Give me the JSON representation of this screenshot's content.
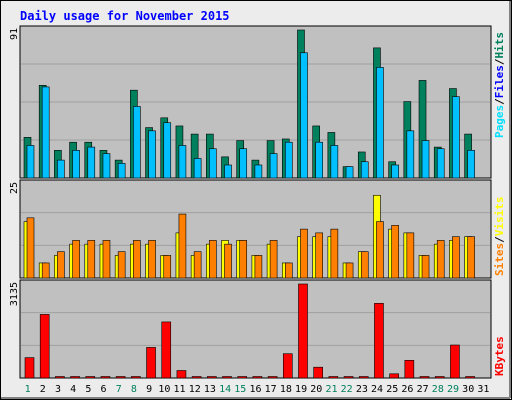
{
  "title": "Daily usage for November 2015",
  "colors": {
    "hits": "#00805c",
    "files": "#00c0ff",
    "pages": "#00e0ff",
    "sites": "#ff8000",
    "visits": "#ffff00",
    "kbytes": "#ff0000",
    "background": "#c0c0c0",
    "title": "#0000ff",
    "weekend_day": "#00805c",
    "weekday_day": "#000000"
  },
  "chart_data": [
    {
      "type": "bar",
      "name": "hits-files-pages",
      "y_max_label": "91",
      "legend": [
        "Pages",
        "Files",
        "Hits"
      ],
      "categories": [
        "1",
        "2",
        "3",
        "4",
        "5",
        "6",
        "7",
        "8",
        "9",
        "10",
        "11",
        "12",
        "13",
        "14",
        "15",
        "16",
        "17",
        "18",
        "19",
        "20",
        "21",
        "22",
        "23",
        "24",
        "25",
        "26",
        "27",
        "28",
        "29",
        "30",
        "31"
      ],
      "ylim": [
        0,
        91
      ],
      "series": [
        {
          "name": "Hits",
          "values": [
            25,
            57,
            17,
            22,
            22,
            17,
            11,
            54,
            31,
            37,
            32,
            27,
            27,
            13,
            23,
            11,
            23,
            24,
            91,
            32,
            28,
            7,
            16,
            80,
            10,
            47,
            60,
            19,
            55,
            27,
            0
          ]
        },
        {
          "name": "Files",
          "values": [
            20,
            56,
            11,
            17,
            19,
            15,
            9,
            44,
            29,
            34,
            20,
            12,
            18,
            8,
            18,
            8,
            15,
            22,
            77,
            22,
            20,
            7,
            10,
            68,
            8,
            29,
            23,
            18,
            50,
            17,
            0
          ]
        },
        {
          "name": "Pages",
          "values": [
            0,
            0,
            0,
            0,
            0,
            0,
            0,
            0,
            0,
            0,
            0,
            0,
            0,
            0,
            0,
            0,
            0,
            0,
            0,
            0,
            0,
            0,
            0,
            0,
            0,
            0,
            0,
            0,
            0,
            0,
            0
          ]
        }
      ]
    },
    {
      "type": "bar",
      "name": "visits-sites",
      "y_max_label": "25",
      "legend": [
        "Sites",
        "Visits"
      ],
      "categories": [
        "1",
        "2",
        "3",
        "4",
        "5",
        "6",
        "7",
        "8",
        "9",
        "10",
        "11",
        "12",
        "13",
        "14",
        "15",
        "16",
        "17",
        "18",
        "19",
        "20",
        "21",
        "22",
        "23",
        "24",
        "25",
        "26",
        "27",
        "28",
        "29",
        "30",
        "31"
      ],
      "ylim": [
        0,
        25
      ],
      "series": [
        {
          "name": "Visits",
          "values": [
            15,
            4,
            6,
            9,
            9,
            9,
            6,
            9,
            9,
            6,
            12,
            6,
            9,
            10,
            10,
            6,
            9,
            4,
            11,
            11,
            11,
            4,
            7,
            22,
            13,
            12,
            6,
            9,
            10,
            11,
            0
          ]
        },
        {
          "name": "Sites",
          "values": [
            16,
            4,
            7,
            10,
            10,
            10,
            7,
            10,
            10,
            6,
            17,
            7,
            10,
            9,
            10,
            6,
            10,
            4,
            13,
            12,
            13,
            4,
            7,
            15,
            14,
            12,
            6,
            10,
            11,
            11,
            0
          ]
        }
      ]
    },
    {
      "type": "bar",
      "name": "kbytes",
      "y_max_label": "3135",
      "legend": [
        "KBytes"
      ],
      "categories": [
        "1",
        "2",
        "3",
        "4",
        "5",
        "6",
        "7",
        "8",
        "9",
        "10",
        "11",
        "12",
        "13",
        "14",
        "15",
        "16",
        "17",
        "18",
        "19",
        "20",
        "21",
        "22",
        "23",
        "24",
        "25",
        "26",
        "27",
        "28",
        "29",
        "30",
        "31"
      ],
      "ylim": [
        0,
        3135
      ],
      "series": [
        {
          "name": "KBytes",
          "values": [
            680,
            2120,
            40,
            40,
            40,
            40,
            40,
            40,
            1020,
            1870,
            250,
            40,
            40,
            40,
            40,
            40,
            40,
            810,
            3135,
            360,
            40,
            40,
            40,
            2490,
            140,
            590,
            40,
            40,
            1100,
            40,
            0
          ]
        }
      ]
    }
  ],
  "weekend_days": [
    1,
    7,
    8,
    14,
    15,
    21,
    22,
    28,
    29
  ]
}
